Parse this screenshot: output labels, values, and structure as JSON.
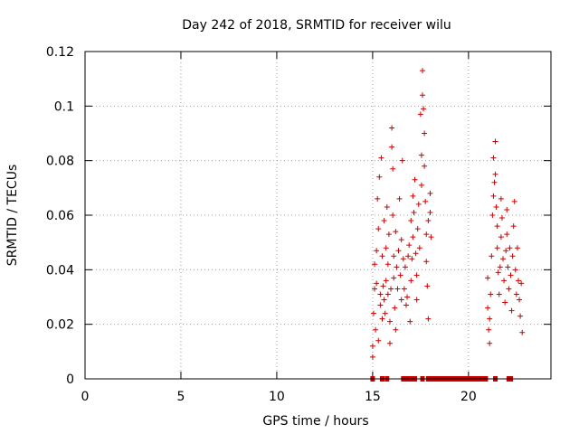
{
  "chart_data": {
    "type": "scatter",
    "title": "Day 242 of 2018, SRMTID for receiver wilu",
    "xlabel": "GPS time / hours",
    "ylabel": "SRMTID / TECUs",
    "xlim": [
      0,
      24.3
    ],
    "ylim": [
      0,
      0.12
    ],
    "x_ticks": [
      0,
      5,
      10,
      15,
      20
    ],
    "x_tick_labels": [
      "0",
      "5",
      "10",
      "15",
      "20"
    ],
    "y_ticks": [
      0,
      0.02,
      0.04,
      0.06,
      0.08,
      0.1,
      0.12
    ],
    "y_tick_labels": [
      "0",
      "0.02",
      "0.04",
      "0.06",
      "0.08",
      "0.1",
      "0.12"
    ],
    "grid": true,
    "legend": "none",
    "marker": "plus",
    "color": "#cc0000",
    "series": [
      {
        "points": [
          [
            15.0,
            0.008
          ],
          [
            15.0,
            0.012
          ],
          [
            15.05,
            0.024
          ],
          [
            15.1,
            0.033
          ],
          [
            15.1,
            0.042
          ],
          [
            15.15,
            0.018
          ],
          [
            15.2,
            0.035
          ],
          [
            15.2,
            0.047
          ],
          [
            15.25,
            0.066
          ],
          [
            15.3,
            0.014
          ],
          [
            15.3,
            0.055
          ],
          [
            15.35,
            0.074
          ],
          [
            15.4,
            0.027
          ],
          [
            15.4,
            0.031
          ],
          [
            15.45,
            0.081
          ],
          [
            15.5,
            0.022
          ],
          [
            15.5,
            0.045
          ],
          [
            15.55,
            0.034
          ],
          [
            15.6,
            0.058
          ],
          [
            15.6,
            0.029
          ],
          [
            15.65,
            0.024
          ],
          [
            15.7,
            0.036
          ],
          [
            15.7,
            0.048
          ],
          [
            15.75,
            0.063
          ],
          [
            15.8,
            0.031
          ],
          [
            15.8,
            0.042
          ],
          [
            15.85,
            0.053
          ],
          [
            15.9,
            0.013
          ],
          [
            15.9,
            0.021
          ],
          [
            15.95,
            0.033
          ],
          [
            16.0,
            0.092
          ],
          [
            16.0,
            0.085
          ],
          [
            16.05,
            0.077
          ],
          [
            16.05,
            0.06
          ],
          [
            16.1,
            0.045
          ],
          [
            16.1,
            0.037
          ],
          [
            16.15,
            0.026
          ],
          [
            16.2,
            0.018
          ],
          [
            16.2,
            0.054
          ],
          [
            16.25,
            0.041
          ],
          [
            16.3,
            0.033
          ],
          [
            16.35,
            0.047
          ],
          [
            16.4,
            0.066
          ],
          [
            16.45,
            0.038
          ],
          [
            16.5,
            0.029
          ],
          [
            16.5,
            0.051
          ],
          [
            16.55,
            0.08
          ],
          [
            16.6,
            0.044
          ],
          [
            16.65,
            0.033
          ],
          [
            16.7,
            0.041
          ],
          [
            16.75,
            0.027
          ],
          [
            16.8,
            0.03
          ],
          [
            16.85,
            0.045
          ],
          [
            16.9,
            0.049
          ],
          [
            16.95,
            0.021
          ],
          [
            17.0,
            0.036
          ],
          [
            17.0,
            0.058
          ],
          [
            17.05,
            0.044
          ],
          [
            17.1,
            0.067
          ],
          [
            17.1,
            0.052
          ],
          [
            17.15,
            0.061
          ],
          [
            17.2,
            0.073
          ],
          [
            17.25,
            0.046
          ],
          [
            17.3,
            0.038
          ],
          [
            17.3,
            0.029
          ],
          [
            17.35,
            0.055
          ],
          [
            17.4,
            0.064
          ],
          [
            17.45,
            0.048
          ],
          [
            17.5,
            0.097
          ],
          [
            17.55,
            0.082
          ],
          [
            17.55,
            0.071
          ],
          [
            17.6,
            0.113
          ],
          [
            17.6,
            0.104
          ],
          [
            17.65,
            0.099
          ],
          [
            17.7,
            0.09
          ],
          [
            17.7,
            0.078
          ],
          [
            17.75,
            0.065
          ],
          [
            17.8,
            0.053
          ],
          [
            17.8,
            0.043
          ],
          [
            17.85,
            0.034
          ],
          [
            17.9,
            0.058
          ],
          [
            17.9,
            0.022
          ],
          [
            18.0,
            0.068
          ],
          [
            18.0,
            0.061
          ],
          [
            18.05,
            0.052
          ],
          [
            21.0,
            0.037
          ],
          [
            21.0,
            0.026
          ],
          [
            21.05,
            0.018
          ],
          [
            21.1,
            0.013
          ],
          [
            21.1,
            0.022
          ],
          [
            21.15,
            0.031
          ],
          [
            21.2,
            0.045
          ],
          [
            21.25,
            0.06
          ],
          [
            21.3,
            0.067
          ],
          [
            21.3,
            0.081
          ],
          [
            21.35,
            0.072
          ],
          [
            21.4,
            0.087
          ],
          [
            21.4,
            0.075
          ],
          [
            21.45,
            0.063
          ],
          [
            21.5,
            0.056
          ],
          [
            21.5,
            0.048
          ],
          [
            21.55,
            0.039
          ],
          [
            21.6,
            0.031
          ],
          [
            21.65,
            0.041
          ],
          [
            21.7,
            0.052
          ],
          [
            21.7,
            0.066
          ],
          [
            21.75,
            0.059
          ],
          [
            21.8,
            0.044
          ],
          [
            21.85,
            0.036
          ],
          [
            21.9,
            0.028
          ],
          [
            21.95,
            0.047
          ],
          [
            22.0,
            0.062
          ],
          [
            22.0,
            0.053
          ],
          [
            22.05,
            0.041
          ],
          [
            22.1,
            0.033
          ],
          [
            22.15,
            0.048
          ],
          [
            22.2,
            0.038
          ],
          [
            22.25,
            0.025
          ],
          [
            22.3,
            0.045
          ],
          [
            22.35,
            0.056
          ],
          [
            22.4,
            0.065
          ],
          [
            22.45,
            0.04
          ],
          [
            22.5,
            0.031
          ],
          [
            22.55,
            0.048
          ],
          [
            22.6,
            0.036
          ],
          [
            22.65,
            0.029
          ],
          [
            22.7,
            0.023
          ],
          [
            22.75,
            0.035
          ],
          [
            22.8,
            0.017
          ]
        ]
      }
    ],
    "zero_points_x": [
      15.0,
      15.5,
      15.75,
      16.6,
      16.8,
      17.0,
      17.2,
      17.6,
      17.9,
      18.0,
      18.1,
      18.2,
      18.3,
      18.4,
      18.5,
      18.6,
      18.7,
      18.8,
      18.9,
      19.0,
      19.1,
      19.2,
      19.3,
      19.4,
      19.5,
      19.6,
      19.7,
      19.8,
      19.9,
      20.0,
      20.1,
      20.2,
      20.3,
      20.4,
      20.5,
      20.6,
      20.7,
      20.8,
      20.9,
      21.4,
      22.1,
      22.2
    ]
  }
}
